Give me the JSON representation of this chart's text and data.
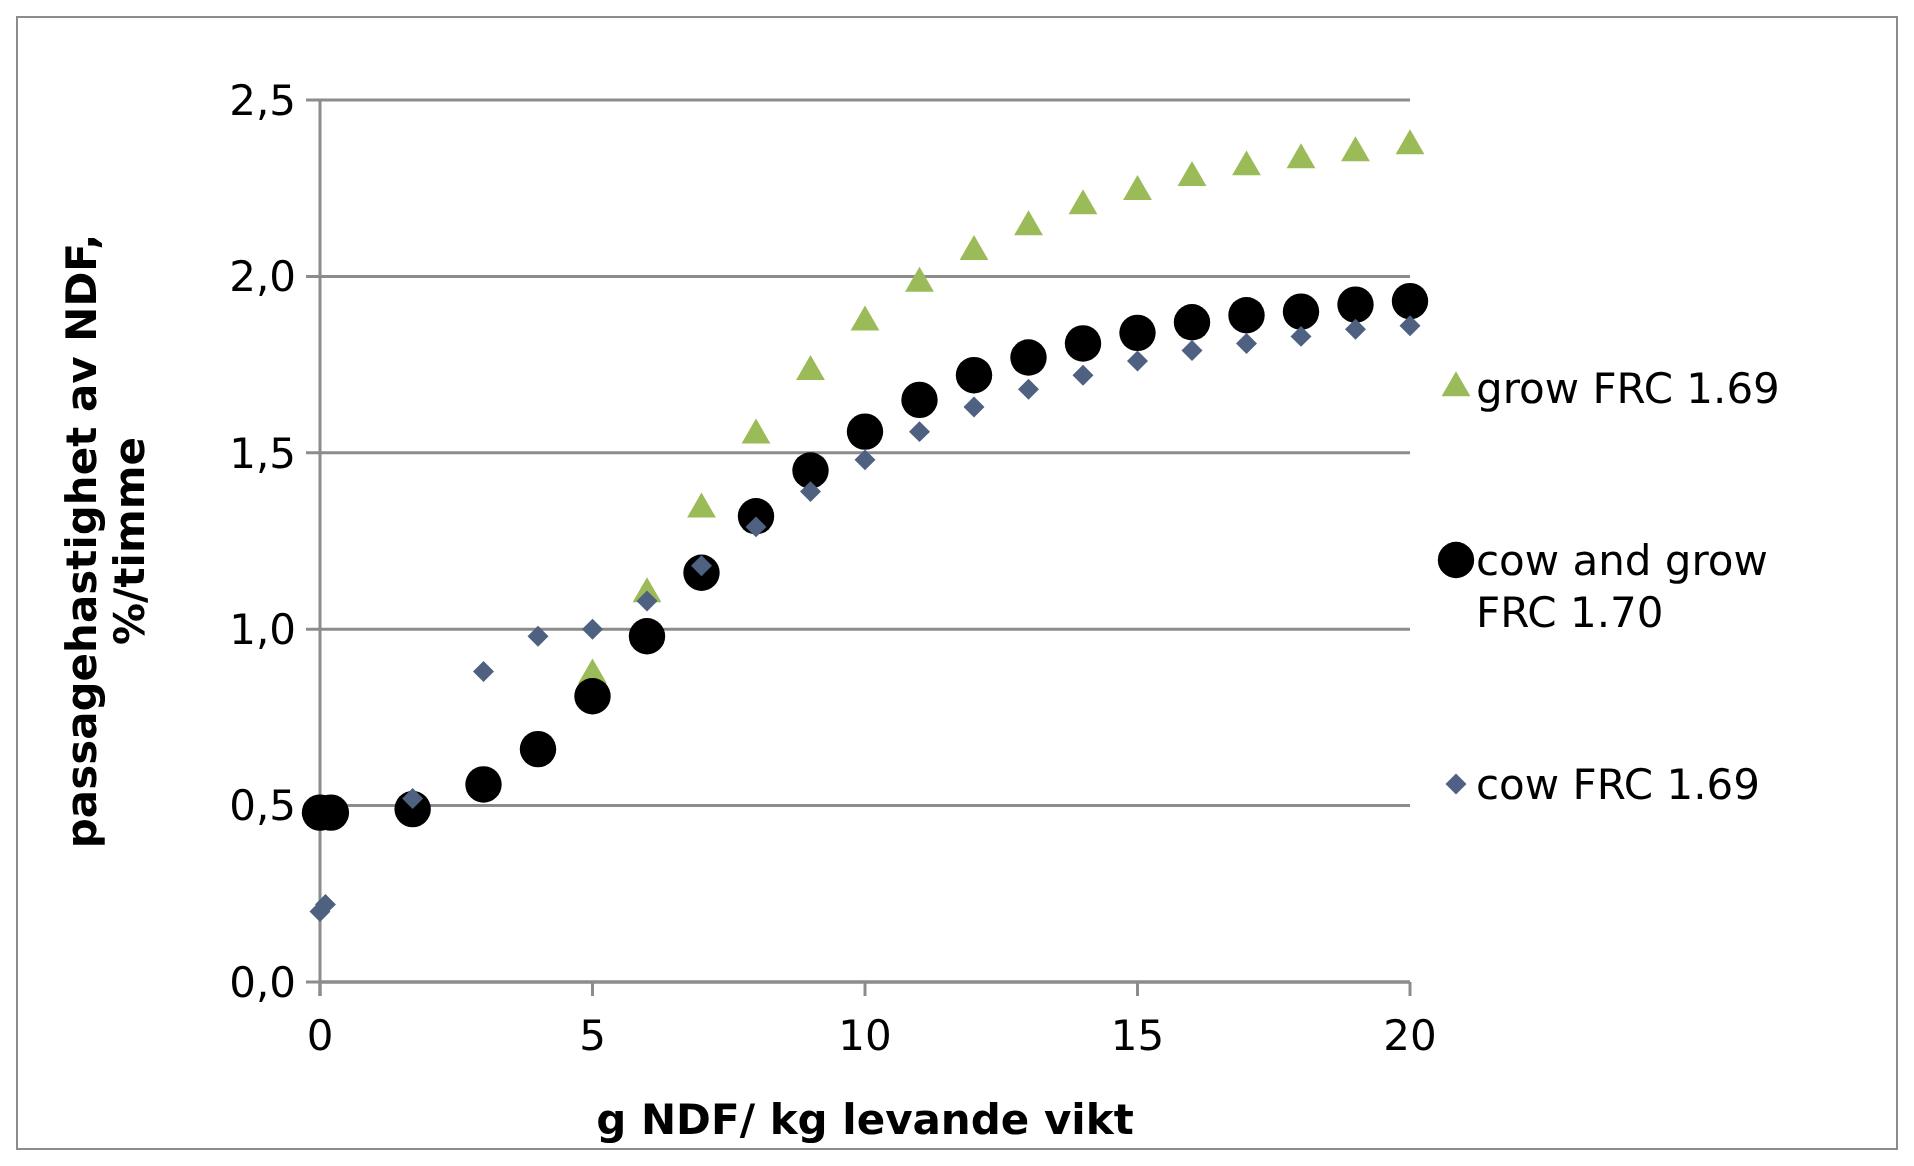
{
  "chart_data": {
    "type": "scatter",
    "xlabel": "g NDF/ kg levande vikt",
    "ylabel": "passagehastighet av NDF, %/timme",
    "xlim": [
      0,
      20
    ],
    "xticks": [
      0,
      5,
      10,
      15,
      20
    ],
    "ylim": [
      0,
      2.5
    ],
    "yticks": [
      {
        "value": 0,
        "label": "0,0"
      },
      {
        "value": 0.5,
        "label": "0,5"
      },
      {
        "value": 1,
        "label": "1,0"
      },
      {
        "value": 1.5,
        "label": "1,5"
      },
      {
        "value": 2,
        "label": "2,0"
      },
      {
        "value": 2.5,
        "label": "2,5"
      }
    ],
    "grid": "y",
    "legend": "right",
    "series": [
      {
        "name": "grow FRC 1.69",
        "color": "#9bbb59",
        "marker": "triangle",
        "x": [
          5,
          6,
          7,
          8,
          9,
          10,
          11,
          12,
          13,
          14,
          15,
          16,
          17,
          18,
          19,
          20
        ],
        "values": [
          0.87,
          1.1,
          1.34,
          1.55,
          1.73,
          1.87,
          1.98,
          2.07,
          2.14,
          2.2,
          2.24,
          2.28,
          2.31,
          2.33,
          2.35,
          2.37
        ]
      },
      {
        "name": "cow and grow FRC 1.70",
        "color": "#000000",
        "marker": "circle",
        "x": [
          0,
          0.2,
          1.7,
          3,
          4,
          5,
          6,
          7,
          8,
          9,
          10,
          11,
          12,
          13,
          14,
          15,
          16,
          17,
          18,
          19,
          20
        ],
        "values": [
          0.48,
          0.48,
          0.49,
          0.56,
          0.66,
          0.81,
          0.98,
          1.16,
          1.32,
          1.45,
          1.56,
          1.65,
          1.72,
          1.77,
          1.81,
          1.84,
          1.87,
          1.89,
          1.9,
          1.92,
          1.93
        ]
      },
      {
        "name": "cow FRC 1.69",
        "color": "#4f6181",
        "marker": "diamond",
        "x": [
          0,
          0.1,
          1.7,
          3,
          4,
          5,
          6,
          7,
          8,
          9,
          10,
          11,
          12,
          13,
          14,
          15,
          16,
          17,
          18,
          19,
          20
        ],
        "values": [
          0.2,
          0.22,
          0.52,
          0.88,
          0.98,
          1.0,
          1.08,
          1.18,
          1.29,
          1.39,
          1.48,
          1.56,
          1.63,
          1.68,
          1.72,
          1.76,
          1.79,
          1.81,
          1.83,
          1.85,
          1.86
        ]
      }
    ]
  }
}
